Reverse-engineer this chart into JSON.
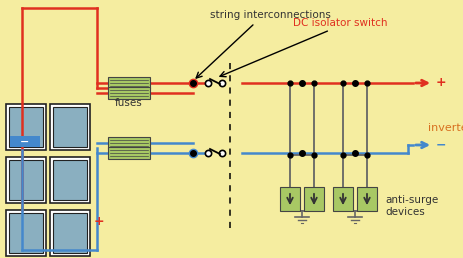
{
  "bg_color": "#f5eda0",
  "panel_fill": "#8aafc0",
  "panel_border": "#222222",
  "fuse_fill": "#a8c864",
  "fuse_border": "#444444",
  "surge_fill": "#a8c864",
  "surge_border": "#444444",
  "wire_red": "#e03020",
  "wire_blue": "#4488cc",
  "wire_gray": "#666666",
  "dot_color": "#111111",
  "text_dark": "#333333",
  "text_orange": "#d87020",
  "text_red": "#e03020",
  "label_fuses": "fuses",
  "label_string": "string interconnections",
  "label_dc": "DC isolator switch",
  "label_inverter": "inverter",
  "label_antisurge": "anti-surge\ndevices",
  "figw": 4.63,
  "figh": 2.58,
  "dpi": 100
}
